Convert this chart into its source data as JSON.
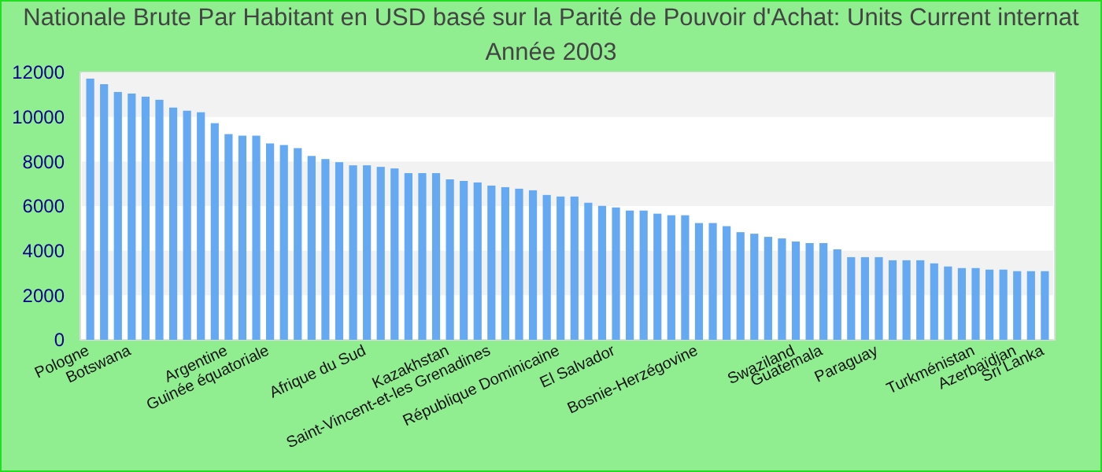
{
  "chart_data": {
    "type": "bar",
    "title": "Nationale Brute Par Habitant en USD basé sur la Parité de Pouvoir d'Achat: Units Current internat",
    "subtitle": "Année 2003",
    "categories": [
      "Pologne",
      null,
      null,
      "Botswana",
      null,
      null,
      null,
      null,
      null,
      null,
      "Argentine",
      null,
      null,
      "Guinée équatoriale",
      null,
      null,
      null,
      null,
      null,
      null,
      "Afrique du Sud",
      null,
      null,
      null,
      null,
      null,
      "Kazakhstan",
      null,
      null,
      "Saint-Vincent-et-les Grenadines",
      null,
      null,
      null,
      null,
      "République Dominicaine",
      null,
      null,
      null,
      "El Salvador",
      null,
      null,
      null,
      null,
      null,
      "Bosnie-Herzégovine",
      null,
      null,
      null,
      null,
      null,
      null,
      "Swaziland",
      null,
      "Guatemala",
      null,
      null,
      null,
      "Paraguay",
      null,
      null,
      null,
      null,
      null,
      null,
      "Turkménistan",
      null,
      null,
      "Azerbaïdjan",
      null,
      "Sri Lanka"
    ],
    "values": [
      11720,
      11470,
      11120,
      11050,
      10910,
      10770,
      10420,
      10280,
      10210,
      9720,
      9230,
      9160,
      9160,
      8810,
      8740,
      8600,
      8250,
      8110,
      7970,
      7830,
      7830,
      7760,
      7690,
      7480,
      7480,
      7480,
      7200,
      7130,
      7060,
      6920,
      6850,
      6780,
      6710,
      6500,
      6430,
      6430,
      6150,
      6010,
      5940,
      5800,
      5800,
      5660,
      5590,
      5590,
      5240,
      5240,
      5100,
      4830,
      4760,
      4620,
      4550,
      4410,
      4340,
      4340,
      4060,
      3710,
      3710,
      3710,
      3570,
      3570,
      3570,
      3430,
      3290,
      3220,
      3220,
      3150,
      3150,
      3080,
      3080,
      3080
    ],
    "color": "#64a9f2",
    "ylim": [
      0,
      12000
    ],
    "yticks": [
      0,
      2000,
      4000,
      6000,
      8000,
      10000,
      12000
    ]
  }
}
